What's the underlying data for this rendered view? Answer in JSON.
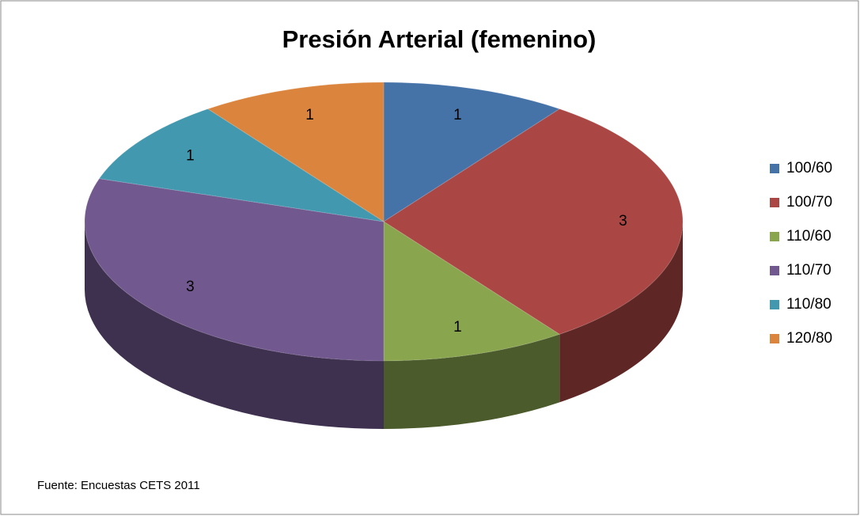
{
  "chart_data": {
    "type": "pie",
    "title": "Presión Arterial (femenino)",
    "categories": [
      "100/60",
      "100/70",
      "110/60",
      "110/70",
      "110/80",
      "120/80"
    ],
    "values": [
      1,
      3,
      1,
      3,
      1,
      1
    ],
    "colors": [
      "#4572a7",
      "#aa4643",
      "#89a54e",
      "#71588f",
      "#4198af",
      "#db843d"
    ],
    "legend": "right",
    "source": "Fuente: Encuestas  CETS 2011"
  }
}
